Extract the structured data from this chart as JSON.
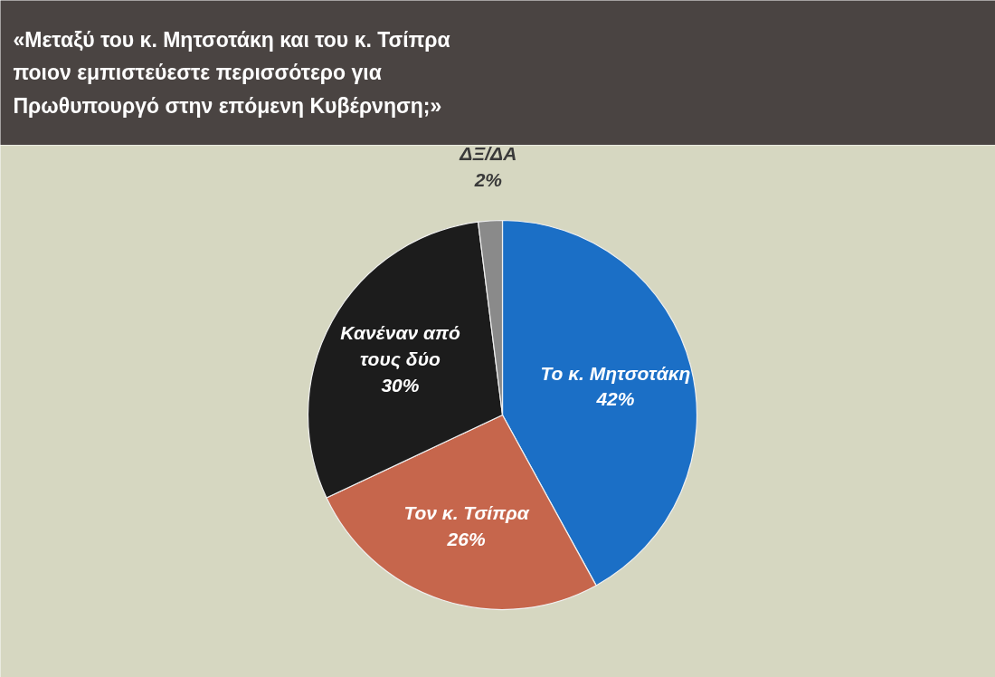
{
  "chart_data": {
    "type": "pie",
    "title": "«Μεταξύ του κ. Μητσοτάκη και του κ. Τσίπρα ποιον εμπιστεύεστε περισσότερο για Πρωθυπουργό στην επόμενη Κυβέρνηση;»",
    "categories": [
      "Το κ. Μητσοτάκη",
      "Τον κ. Τσίπρα",
      "Κανέναν από τους δύο",
      "ΔΞ/ΔΑ"
    ],
    "values": [
      42,
      26,
      30,
      2
    ],
    "colors": [
      "#1b6fc6",
      "#c6664c",
      "#1c1c1c",
      "#8a8a8a"
    ],
    "value_labels": [
      "42%",
      "26%",
      "30%",
      "2%"
    ]
  }
}
